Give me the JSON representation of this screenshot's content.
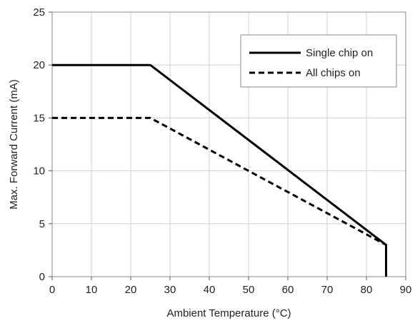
{
  "chart_data": {
    "type": "line",
    "title": "",
    "xlabel": "Ambient Temperature (°C)",
    "ylabel": "Max. Forward Current (mA)",
    "xlim": [
      0,
      90
    ],
    "ylim": [
      0,
      25
    ],
    "xticks": [
      0,
      10,
      20,
      30,
      40,
      50,
      60,
      70,
      80,
      90
    ],
    "yticks": [
      0,
      5,
      10,
      15,
      20,
      25
    ],
    "grid": true,
    "legend": "top-right",
    "series": [
      {
        "name": "Single chip on",
        "style": "solid",
        "color": "#000000",
        "x": [
          0,
          25,
          85,
          85
        ],
        "y": [
          20,
          20,
          3,
          0
        ]
      },
      {
        "name": "All chips on",
        "style": "dashed",
        "color": "#000000",
        "x": [
          0,
          25,
          85,
          85
        ],
        "y": [
          15,
          15,
          3,
          0
        ]
      }
    ]
  }
}
